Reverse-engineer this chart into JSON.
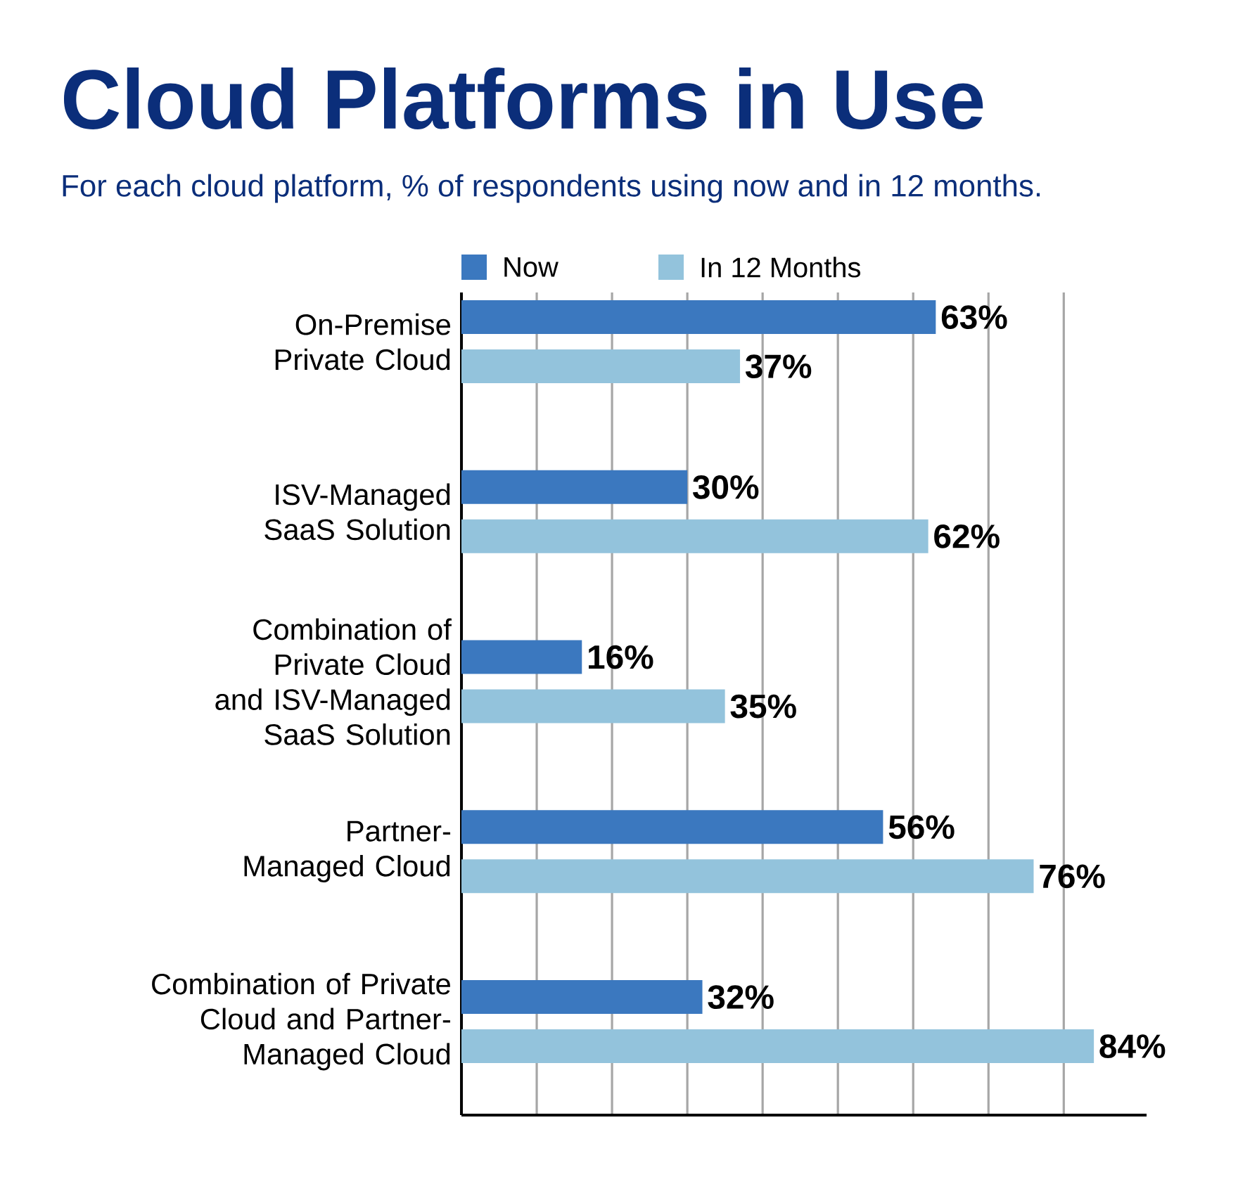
{
  "chart_data": {
    "type": "bar",
    "orientation": "horizontal",
    "title": "Cloud Platforms in Use",
    "subtitle": "For each cloud platform, % of respondents using now and in 12 months.",
    "categories": [
      "On-Premise Private Cloud",
      "ISV-Managed SaaS Solution",
      "Combination of Private Cloud and ISV-Managed SaaS Solution",
      "Partner-Managed Cloud",
      "Combination of Private Cloud and Partner-Managed Cloud"
    ],
    "series": [
      {
        "name": "Now",
        "color": "#3b78bf",
        "values": [
          63,
          30,
          16,
          56,
          32
        ],
        "value_labels": [
          "63%",
          "30%",
          "16%",
          "56%",
          "32%"
        ]
      },
      {
        "name": "In 12 Months",
        "color": "#93c3dc",
        "values": [
          37,
          62,
          35,
          76,
          84
        ],
        "value_labels": [
          "37%",
          "62%",
          "35%",
          "76%",
          "84%"
        ]
      }
    ],
    "xlim": [
      0,
      91
    ],
    "xticks": [
      {
        "value": 10,
        "label": null
      },
      {
        "value": 20,
        "label": null
      },
      {
        "value": 30,
        "label": null
      },
      {
        "value": 40,
        "label": null
      },
      {
        "value": 50,
        "label": null
      },
      {
        "value": 60,
        "label": null
      },
      {
        "value": 70,
        "label": null
      },
      {
        "value": 80,
        "label": null
      }
    ],
    "grid": "x",
    "tick_labels": "y",
    "legend": "top"
  }
}
